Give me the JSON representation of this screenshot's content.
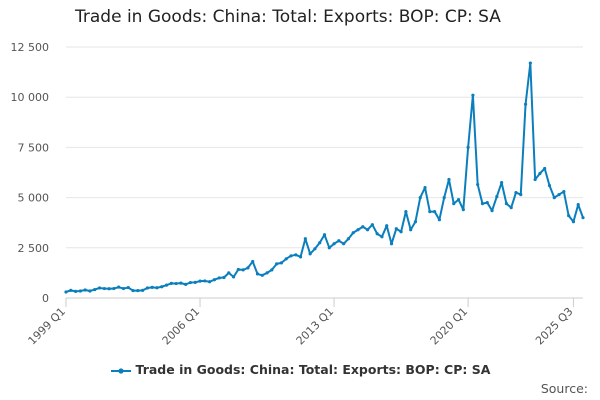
{
  "chart_data": {
    "type": "line",
    "title": "Trade in Goods: China: Total: Exports: BOP: CP: SA",
    "xlabel": "",
    "ylabel": "",
    "x_start": "1999 Q1",
    "x_end": "2025 Q3",
    "x_tick_labels": [
      "1999 Q1",
      "2006 Q1",
      "2013 Q1",
      "2020 Q1",
      "2025 Q3"
    ],
    "y_ticks": [
      0,
      2500,
      5000,
      7500,
      10000,
      12500
    ],
    "y_tick_labels": [
      "0",
      "2 500",
      "5 000",
      "7 500",
      "10 000",
      "12 500"
    ],
    "ylim": [
      0,
      12500
    ],
    "grid": true,
    "legend_position": "bottom",
    "series": [
      {
        "name": "Trade in Goods: China: Total: Exports: BOP: CP: SA",
        "color": "#0b7fbd",
        "values": [
          300,
          380,
          330,
          350,
          400,
          350,
          420,
          500,
          470,
          460,
          470,
          540,
          470,
          520,
          370,
          370,
          380,
          500,
          530,
          510,
          560,
          640,
          730,
          720,
          740,
          680,
          770,
          780,
          840,
          850,
          810,
          910,
          1000,
          1020,
          1250,
          1050,
          1420,
          1400,
          1500,
          1820,
          1200,
          1130,
          1250,
          1400,
          1700,
          1750,
          1950,
          2100,
          2150,
          2050,
          2950,
          2200,
          2450,
          2750,
          3150,
          2500,
          2700,
          2850,
          2700,
          2950,
          3250,
          3400,
          3550,
          3400,
          3650,
          3200,
          3050,
          3600,
          2700,
          3450,
          3300,
          4300,
          3400,
          3800,
          5000,
          5500,
          4300,
          4300,
          3900,
          5000,
          5900,
          4700,
          4900,
          4400,
          7500,
          10100,
          5650,
          4700,
          4750,
          4350,
          5050,
          5750,
          4700,
          4500,
          5250,
          5150,
          9650,
          11700,
          5900,
          6200,
          6450,
          5600,
          5000,
          5150,
          5300,
          4100,
          3800,
          4650,
          4000
        ]
      }
    ],
    "source_label": "Source:"
  }
}
